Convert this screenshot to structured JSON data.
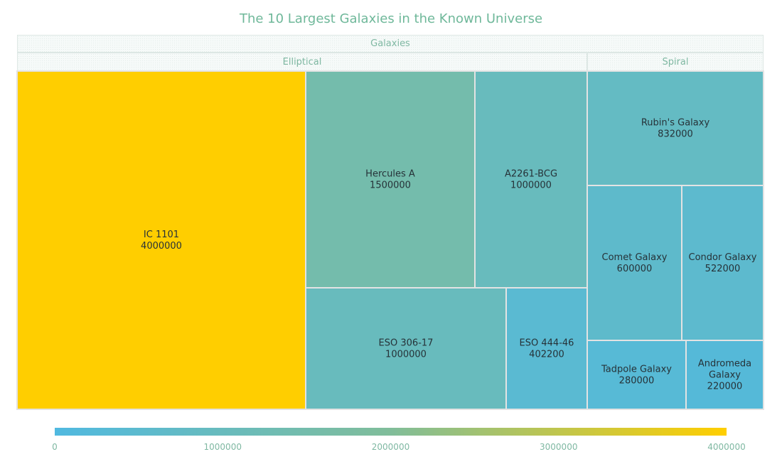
{
  "chart_data": {
    "type": "treemap",
    "title": "The 10 Largest Galaxies in the Known Universe",
    "root": "Galaxies",
    "groups": [
      {
        "name": "Elliptical",
        "items": [
          {
            "name": "IC 1101",
            "value": 4000000
          },
          {
            "name": "Hercules A",
            "value": 1500000
          },
          {
            "name": "A2261-BCG",
            "value": 1000000
          },
          {
            "name": "ESO 306-17",
            "value": 1000000
          },
          {
            "name": "ESO 444-46",
            "value": 402200
          }
        ]
      },
      {
        "name": "Spiral",
        "items": [
          {
            "name": "Rubin's Galaxy",
            "value": 832000
          },
          {
            "name": "Comet Galaxy",
            "value": 600000
          },
          {
            "name": "Condor Galaxy",
            "value": 522000
          },
          {
            "name": "Tadpole Galaxy",
            "value": 280000
          },
          {
            "name": "Andromeda Galaxy",
            "value": 220000
          }
        ]
      }
    ],
    "color_scale": {
      "min": 0,
      "max": 4000000,
      "ticks": [
        0,
        1000000,
        2000000,
        3000000,
        4000000
      ],
      "colors": [
        "#50b9e0",
        "#80bd9a",
        "#ffce00"
      ]
    }
  }
}
